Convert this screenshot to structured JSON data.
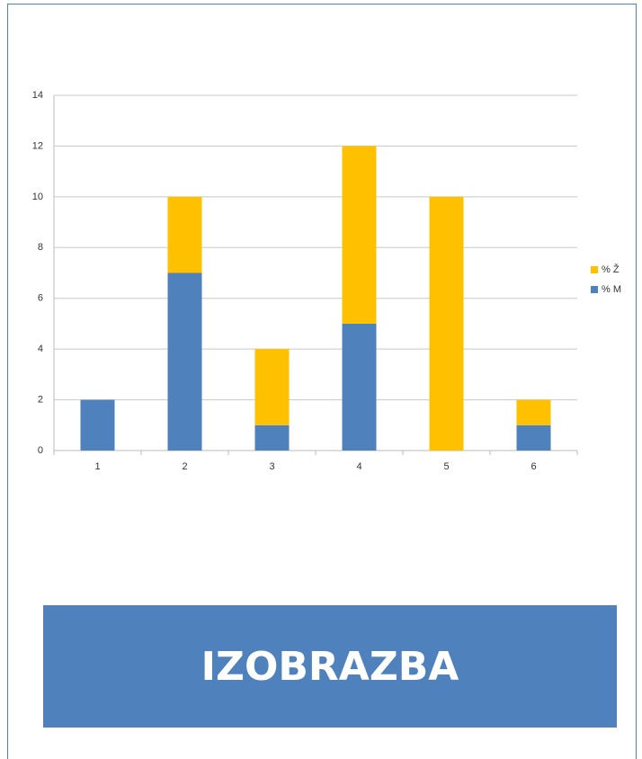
{
  "chart_data": {
    "type": "bar",
    "stacked": true,
    "categories": [
      "1",
      "2",
      "3",
      "4",
      "5",
      "6"
    ],
    "series": [
      {
        "name": "% M",
        "color": "#4f81bd",
        "values": [
          2,
          7,
          1,
          5,
          0,
          1
        ]
      },
      {
        "name": "% Ž",
        "color": "#ffc000",
        "values": [
          0,
          3,
          3,
          7,
          10,
          1
        ]
      }
    ],
    "ylim": [
      0,
      14
    ],
    "yticks": [
      0,
      2,
      4,
      6,
      8,
      10,
      12,
      14
    ],
    "grid": true,
    "legend": "right"
  },
  "banner": "IZOBRAZBA"
}
